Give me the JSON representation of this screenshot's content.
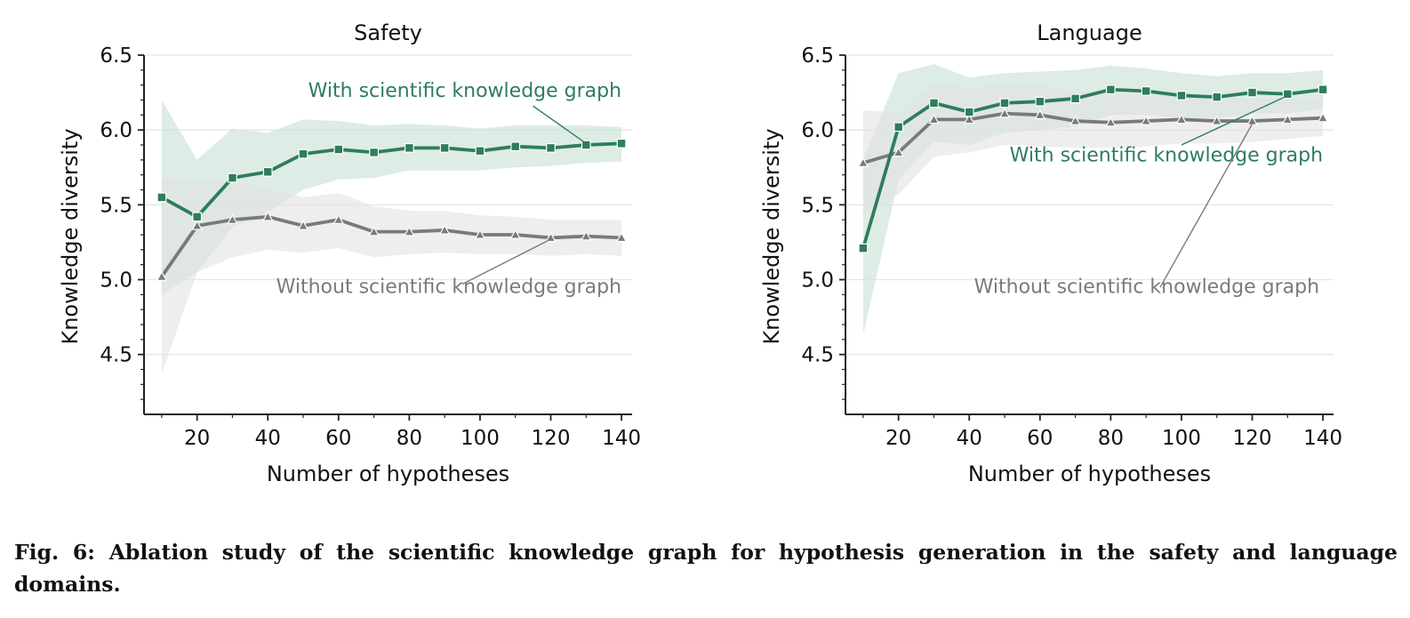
{
  "colors": {
    "with": "#2e7d5b",
    "without": "#7a7a7a",
    "with_band": "#cfe4da",
    "without_band": "#e3e3e3",
    "grid": "#e6e6e6",
    "axis": "#222222"
  },
  "markers": {
    "with": "square",
    "without": "triangle"
  },
  "chart_data": [
    {
      "type": "line",
      "title": "Safety",
      "xlabel": "Number of hypotheses",
      "ylabel": "Knowledge diversity",
      "xlim": [
        5,
        143
      ],
      "ylim": [
        4.1,
        6.5
      ],
      "xticks": [
        20,
        40,
        60,
        80,
        100,
        120,
        140
      ],
      "yticks": [
        4.5,
        5.0,
        5.5,
        6.0,
        6.5
      ],
      "ytick_labels": [
        "4.5",
        "5.0",
        "5.5",
        "6.0",
        "6.5"
      ],
      "grid": "horizontal",
      "x": [
        10,
        20,
        30,
        40,
        50,
        60,
        70,
        80,
        90,
        100,
        110,
        120,
        130,
        140
      ],
      "series": [
        {
          "key": "with",
          "values": [
            5.55,
            5.42,
            5.68,
            5.72,
            5.84,
            5.87,
            5.85,
            5.88,
            5.88,
            5.86,
            5.89,
            5.88,
            5.9,
            5.91
          ],
          "band_upper": [
            6.2,
            5.8,
            6.01,
            5.98,
            6.07,
            6.06,
            6.03,
            6.04,
            6.03,
            6.01,
            6.03,
            6.03,
            6.03,
            6.02
          ],
          "band_lower": [
            4.9,
            5.05,
            5.35,
            5.45,
            5.6,
            5.67,
            5.68,
            5.73,
            5.73,
            5.73,
            5.75,
            5.76,
            5.78,
            5.79
          ]
        },
        {
          "key": "without",
          "values": [
            5.02,
            5.36,
            5.4,
            5.42,
            5.36,
            5.4,
            5.32,
            5.32,
            5.33,
            5.3,
            5.3,
            5.28,
            5.29,
            5.28
          ],
          "band_upper": [
            5.68,
            5.67,
            5.65,
            5.61,
            5.55,
            5.58,
            5.49,
            5.46,
            5.46,
            5.43,
            5.42,
            5.4,
            5.4,
            5.4
          ],
          "band_lower": [
            4.37,
            5.05,
            5.15,
            5.2,
            5.18,
            5.21,
            5.15,
            5.17,
            5.18,
            5.17,
            5.17,
            5.16,
            5.17,
            5.16
          ]
        }
      ],
      "annotations": [
        {
          "series": "with",
          "text": "With scientific knowledge graph",
          "text_at": [
            140,
            6.22
          ],
          "align": "end",
          "arrow_from": [
            115,
            6.16
          ],
          "arrow_to": [
            130,
            5.91
          ]
        },
        {
          "series": "without",
          "text": "Without scientific knowledge graph",
          "text_at": [
            140,
            4.91
          ],
          "align": "end",
          "arrow_from": [
            95,
            4.97
          ],
          "arrow_to": [
            120,
            5.27
          ]
        }
      ]
    },
    {
      "type": "line",
      "title": "Language",
      "xlabel": "Number of hypotheses",
      "ylabel": "Knowledge diversity",
      "xlim": [
        5,
        143
      ],
      "ylim": [
        4.1,
        6.5
      ],
      "xticks": [
        20,
        40,
        60,
        80,
        100,
        120,
        140
      ],
      "yticks": [
        4.5,
        5.0,
        5.5,
        6.0,
        6.5
      ],
      "ytick_labels": [
        "4.5",
        "5.0",
        "5.5",
        "6.0",
        "6.5"
      ],
      "grid": "horizontal",
      "x": [
        10,
        20,
        30,
        40,
        50,
        60,
        70,
        80,
        90,
        100,
        110,
        120,
        130,
        140
      ],
      "series": [
        {
          "key": "with",
          "values": [
            5.21,
            6.02,
            6.18,
            6.12,
            6.18,
            6.19,
            6.21,
            6.27,
            6.26,
            6.23,
            6.22,
            6.25,
            6.24,
            6.27
          ],
          "band_upper": [
            5.8,
            6.38,
            6.44,
            6.35,
            6.38,
            6.39,
            6.4,
            6.43,
            6.41,
            6.38,
            6.36,
            6.38,
            6.38,
            6.4
          ],
          "band_lower": [
            4.63,
            5.67,
            5.92,
            5.9,
            5.98,
            6.0,
            6.02,
            6.1,
            6.1,
            6.08,
            6.08,
            6.11,
            6.11,
            6.14
          ]
        },
        {
          "key": "without",
          "values": [
            5.78,
            5.85,
            6.07,
            6.07,
            6.11,
            6.1,
            6.06,
            6.05,
            6.06,
            6.07,
            6.06,
            6.06,
            6.07,
            6.08
          ],
          "band_upper": [
            6.13,
            6.12,
            6.32,
            6.28,
            6.31,
            6.3,
            6.25,
            6.24,
            6.24,
            6.23,
            6.22,
            6.21,
            6.21,
            6.21
          ],
          "band_lower": [
            5.43,
            5.57,
            5.82,
            5.85,
            5.9,
            5.89,
            5.88,
            5.88,
            5.89,
            5.91,
            5.91,
            5.92,
            5.94,
            5.96
          ]
        }
      ],
      "annotations": [
        {
          "series": "with",
          "text": "With scientific knowledge graph",
          "text_at": [
            140,
            5.79
          ],
          "align": "end",
          "arrow_from": [
            100,
            5.9
          ],
          "arrow_to": [
            131,
            6.24
          ]
        },
        {
          "series": "without",
          "text": "Without scientific knowledge graph",
          "text_at": [
            139,
            4.91
          ],
          "align": "end",
          "arrow_from": [
            94,
            4.95
          ],
          "arrow_to": [
            120,
            6.04
          ]
        }
      ]
    }
  ],
  "caption": {
    "label": "Fig. 6:",
    "text": "Ablation study of the scientific knowledge graph for hypothesis generation in the safety and language domains."
  }
}
